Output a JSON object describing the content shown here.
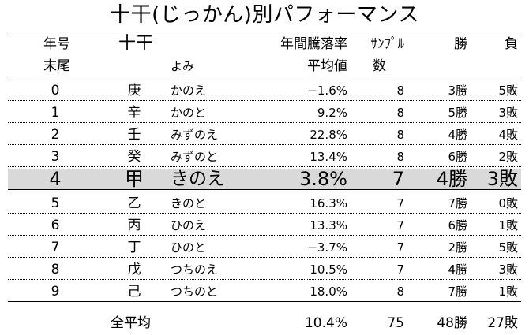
{
  "title": "十干(じっかん)別パフォーマンス",
  "header": {
    "row1": {
      "year": "年号",
      "kan": "十干",
      "rate": "年間騰落率",
      "sample": "ｻﾝﾌﾟﾙ",
      "win": "勝",
      "lose": "負"
    },
    "row2": {
      "year": "末尾",
      "yomi": "よみ",
      "rate": "平均値",
      "sample": "数"
    }
  },
  "rows": [
    {
      "year": "0",
      "kan": "庚",
      "yomi": "かのえ",
      "rate": "−1.6%",
      "sample": "8",
      "win": "3勝",
      "lose": "5敗"
    },
    {
      "year": "1",
      "kan": "辛",
      "yomi": "かのと",
      "rate": "9.2%",
      "sample": "8",
      "win": "5勝",
      "lose": "3敗"
    },
    {
      "year": "2",
      "kan": "壬",
      "yomi": "みずのえ",
      "rate": "22.8%",
      "sample": "8",
      "win": "4勝",
      "lose": "4敗"
    },
    {
      "year": "3",
      "kan": "癸",
      "yomi": "みずのと",
      "rate": "13.4%",
      "sample": "8",
      "win": "6勝",
      "lose": "2敗"
    },
    {
      "year": "4",
      "kan": "甲",
      "yomi": "きのえ",
      "rate": "3.8%",
      "sample": "7",
      "win": "4勝",
      "lose": "3敗",
      "highlight": true
    },
    {
      "year": "5",
      "kan": "乙",
      "yomi": "きのと",
      "rate": "16.3%",
      "sample": "7",
      "win": "7勝",
      "lose": "0敗"
    },
    {
      "year": "6",
      "kan": "丙",
      "yomi": "ひのえ",
      "rate": "13.3%",
      "sample": "7",
      "win": "6勝",
      "lose": "1敗"
    },
    {
      "year": "7",
      "kan": "丁",
      "yomi": "ひのと",
      "rate": "−3.7%",
      "sample": "7",
      "win": "2勝",
      "lose": "5敗"
    },
    {
      "year": "8",
      "kan": "戊",
      "yomi": "つちのえ",
      "rate": "10.5%",
      "sample": "7",
      "win": "4勝",
      "lose": "3敗"
    },
    {
      "year": "9",
      "kan": "己",
      "yomi": "つちのと",
      "rate": "18.0%",
      "sample": "8",
      "win": "7勝",
      "lose": "1敗"
    }
  ],
  "average": {
    "label": "全平均",
    "rate": "10.4%",
    "sample": "75",
    "win": "48勝",
    "lose": "27敗"
  },
  "colors": {
    "highlight_bg": "#d9d9d9",
    "text": "#000000"
  }
}
